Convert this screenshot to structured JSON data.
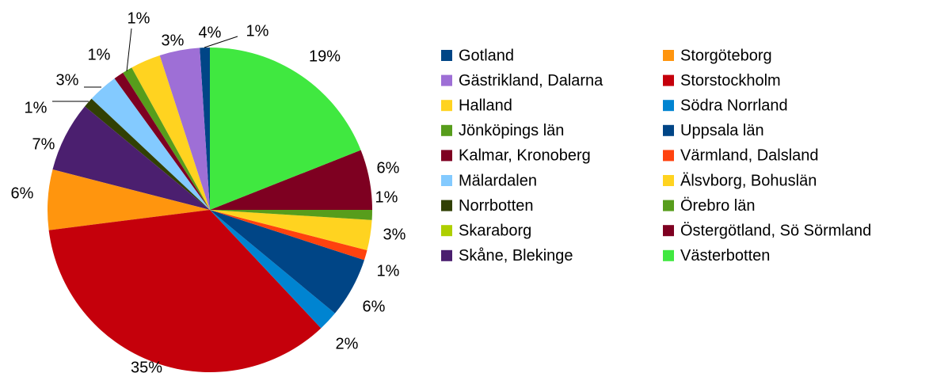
{
  "chart_data": {
    "type": "pie",
    "categories": [
      "Gotland",
      "Gästrikland, Dalarna",
      "Halland",
      "Jönköpings län",
      "Kalmar, Kronoberg",
      "Mälardalen",
      "Norrbotten",
      "Skaraborg",
      "Skåne, Blekinge",
      "Storgöteborg",
      "Storstockholm",
      "Södra Norrland",
      "Uppsala län",
      "Värmland, Dalsland",
      "Älsvborg, Bohuslän",
      "Örebro län",
      "Östergötland, Sö Sörmland",
      "Västerbotten"
    ],
    "values": [
      1,
      4,
      3,
      1,
      1,
      3,
      1,
      0,
      7,
      6,
      35,
      2,
      6,
      1,
      3,
      1,
      6,
      19
    ],
    "value_labels": [
      "1%",
      "4%",
      "3%",
      "1%",
      "1%",
      "3%",
      "1%",
      null,
      "7%",
      "6%",
      "35%",
      "2%",
      "6%",
      "1%",
      "3%",
      "1%",
      "6%",
      "19%"
    ],
    "colors": [
      "#004586",
      "#9e6fd6",
      "#ffd320",
      "#579d1c",
      "#7e0021",
      "#83caff",
      "#314004",
      "#aecf00",
      "#4b1f6f",
      "#ff950e",
      "#c5000b",
      "#0084d1",
      "#004586",
      "#ff420e",
      "#ffd320",
      "#579d1c",
      "#7e0021",
      "#40e840"
    ],
    "direction": "counterclockwise"
  }
}
